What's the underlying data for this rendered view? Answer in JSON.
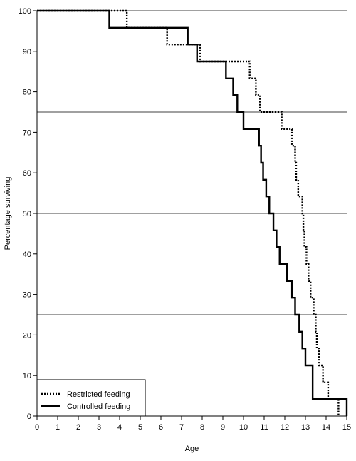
{
  "chart_data": {
    "type": "line",
    "xlabel": "Age",
    "ylabel": "Percentage surviving",
    "xlim": [
      0,
      15
    ],
    "ylim": [
      0,
      100
    ],
    "x_ticks": [
      0,
      1,
      2,
      3,
      4,
      5,
      6,
      7,
      8,
      9,
      10,
      11,
      12,
      13,
      14,
      15
    ],
    "y_ticks": [
      0,
      10,
      20,
      30,
      40,
      50,
      60,
      70,
      80,
      90,
      100
    ],
    "reference_lines_y": [
      25,
      50,
      75
    ],
    "legend_position": "bottom-left",
    "step": true,
    "series": [
      {
        "name": "Restricted feeding",
        "line_style": "dotted",
        "color": "#000000",
        "x": [
          0,
          4.35,
          6.3,
          7.9,
          10.3,
          10.6,
          10.8,
          11.85,
          12.35,
          12.5,
          12.55,
          12.65,
          12.85,
          12.9,
          12.95,
          13.05,
          13.15,
          13.25,
          13.4,
          13.5,
          13.55,
          13.65,
          13.85,
          14.1,
          14.6
        ],
        "y": [
          100,
          95.8,
          91.7,
          87.5,
          83.3,
          79.2,
          75,
          70.8,
          66.7,
          62.5,
          58.3,
          54.2,
          50,
          45.8,
          41.7,
          37.5,
          33.3,
          29.2,
          25,
          20.8,
          16.7,
          12.5,
          8.3,
          4.2,
          0
        ]
      },
      {
        "name": "Controlled feeding",
        "line_style": "solid",
        "color": "#000000",
        "x": [
          0,
          3.5,
          7.3,
          7.75,
          9.15,
          9.5,
          9.7,
          10,
          10.75,
          10.85,
          10.95,
          11.1,
          11.25,
          11.45,
          11.6,
          11.75,
          12.1,
          12.35,
          12.5,
          12.7,
          12.85,
          13,
          13.35,
          15
        ],
        "y": [
          100,
          95.8,
          91.7,
          87.5,
          83.3,
          79.2,
          75,
          70.8,
          66.7,
          62.5,
          58.3,
          54.2,
          50,
          45.8,
          41.7,
          37.5,
          33.3,
          29.2,
          25,
          20.8,
          16.7,
          12.5,
          4.2,
          0
        ]
      }
    ]
  }
}
